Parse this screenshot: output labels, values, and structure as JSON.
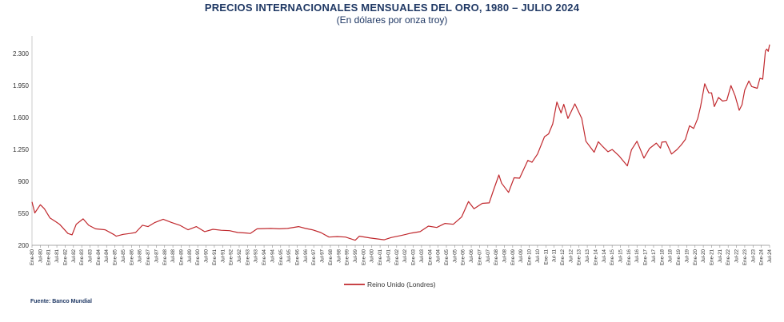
{
  "chart_data": {
    "type": "line",
    "title": "PRECIOS INTERNACIONALES MENSUALES DEL ORO, 1980 – JULIO 2024",
    "subtitle": "(En dólares por onza troy)",
    "xlabel": "",
    "ylabel": "",
    "ylim": [
      200,
      2450
    ],
    "yticks": [
      200,
      550,
      900,
      1250,
      1600,
      1950,
      2300
    ],
    "ytick_labels": [
      "200",
      "550",
      "900",
      "1.250",
      "1.600",
      "1.950",
      "2.300"
    ],
    "x_ticks": [
      "Ene-80",
      "Jul-80",
      "Ene-81",
      "Jul-81",
      "Ene-82",
      "Jul-82",
      "Ene-83",
      "Jul-83",
      "Ene-84",
      "Jul-84",
      "Ene-85",
      "Jul-85",
      "Ene-86",
      "Jul-86",
      "Ene-87",
      "Jul-87",
      "Ene-88",
      "Jul-88",
      "Ene-89",
      "Jul-89",
      "Ene-90",
      "Jul-90",
      "Ene-91",
      "Jul-91",
      "Ene-92",
      "Jul-92",
      "Ene-93",
      "Jul-93",
      "Ene-94",
      "Jul-94",
      "Ene-95",
      "Jul-95",
      "Ene-96",
      "Jul-96",
      "Ene-97",
      "Jul-97",
      "Ene-98",
      "Jul-98",
      "Ene-99",
      "Jul-99",
      "Ene-00",
      "Jul-00",
      "Ene-01",
      "Jul-01",
      "Ene-02",
      "Jul-02",
      "Ene-03",
      "Jul-03",
      "Ene-04",
      "Jul-04",
      "Ene-05",
      "Jul-05",
      "Ene-06",
      "Jul-06",
      "Ene-07",
      "Jul-07",
      "Ene-08",
      "Jul-08",
      "Ene-09",
      "Jul-09",
      "Ene-10",
      "Jul-10",
      "Ene-11",
      "Jul-11",
      "Ene-12",
      "Jul-12",
      "Ene-13",
      "Jul-13",
      "Ene-14",
      "Jul-14",
      "Ene-15",
      "Jul-15",
      "Ene-16",
      "Jul-16",
      "Ene-17",
      "Jul-17",
      "Ene-18",
      "Jul-18",
      "Ene-19",
      "Jul-19",
      "Ene-20",
      "Jul-20",
      "Ene-21",
      "Jul-21",
      "Ene-22",
      "Jul-22",
      "Ene-23",
      "Jul-23",
      "Ene-24",
      "Jul-24"
    ],
    "series": [
      {
        "name": "Reino Unido (Londres)",
        "color": "#c0282d",
        "points": [
          [
            "1980-01",
            675
          ],
          [
            "1980-03",
            555
          ],
          [
            "1980-07",
            645
          ],
          [
            "1980-10",
            600
          ],
          [
            "1981-02",
            500
          ],
          [
            "1981-06",
            460
          ],
          [
            "1981-09",
            430
          ],
          [
            "1982-03",
            330
          ],
          [
            "1982-06",
            315
          ],
          [
            "1982-09",
            430
          ],
          [
            "1983-02",
            490
          ],
          [
            "1983-06",
            420
          ],
          [
            "1983-11",
            380
          ],
          [
            "1984-06",
            370
          ],
          [
            "1984-12",
            320
          ],
          [
            "1985-02",
            300
          ],
          [
            "1985-07",
            320
          ],
          [
            "1985-12",
            330
          ],
          [
            "1986-04",
            340
          ],
          [
            "1986-09",
            420
          ],
          [
            "1987-01",
            405
          ],
          [
            "1987-06",
            450
          ],
          [
            "1987-12",
            485
          ],
          [
            "1988-06",
            450
          ],
          [
            "1988-12",
            420
          ],
          [
            "1989-06",
            370
          ],
          [
            "1989-12",
            405
          ],
          [
            "1990-06",
            350
          ],
          [
            "1990-12",
            375
          ],
          [
            "1991-06",
            365
          ],
          [
            "1991-12",
            360
          ],
          [
            "1992-06",
            340
          ],
          [
            "1992-12",
            335
          ],
          [
            "1993-03",
            330
          ],
          [
            "1993-08",
            380
          ],
          [
            "1994-06",
            385
          ],
          [
            "1994-12",
            380
          ],
          [
            "1995-06",
            385
          ],
          [
            "1996-02",
            405
          ],
          [
            "1996-07",
            385
          ],
          [
            "1996-12",
            370
          ],
          [
            "1997-06",
            340
          ],
          [
            "1997-12",
            290
          ],
          [
            "1998-06",
            295
          ],
          [
            "1998-12",
            290
          ],
          [
            "1999-07",
            255
          ],
          [
            "1999-10",
            300
          ],
          [
            "2000-06",
            280
          ],
          [
            "2001-04",
            260
          ],
          [
            "2001-09",
            285
          ],
          [
            "2002-05",
            310
          ],
          [
            "2002-12",
            335
          ],
          [
            "2003-06",
            350
          ],
          [
            "2003-12",
            410
          ],
          [
            "2004-06",
            395
          ],
          [
            "2004-12",
            440
          ],
          [
            "2005-06",
            430
          ],
          [
            "2005-12",
            510
          ],
          [
            "2006-05",
            680
          ],
          [
            "2006-09",
            600
          ],
          [
            "2007-03",
            660
          ],
          [
            "2007-08",
            665
          ],
          [
            "2007-11",
            800
          ],
          [
            "2008-03",
            970
          ],
          [
            "2008-05",
            880
          ],
          [
            "2008-10",
            780
          ],
          [
            "2009-02",
            940
          ],
          [
            "2009-06",
            935
          ],
          [
            "2009-12",
            1130
          ],
          [
            "2010-03",
            1110
          ],
          [
            "2010-07",
            1200
          ],
          [
            "2010-12",
            1390
          ],
          [
            "2011-03",
            1420
          ],
          [
            "2011-06",
            1530
          ],
          [
            "2011-09",
            1770
          ],
          [
            "2011-12",
            1650
          ],
          [
            "2012-02",
            1745
          ],
          [
            "2012-05",
            1590
          ],
          [
            "2012-10",
            1750
          ],
          [
            "2013-03",
            1590
          ],
          [
            "2013-06",
            1340
          ],
          [
            "2013-12",
            1220
          ],
          [
            "2014-03",
            1335
          ],
          [
            "2014-06",
            1285
          ],
          [
            "2014-10",
            1225
          ],
          [
            "2015-01",
            1250
          ],
          [
            "2015-06",
            1180
          ],
          [
            "2015-12",
            1070
          ],
          [
            "2016-03",
            1245
          ],
          [
            "2016-07",
            1340
          ],
          [
            "2016-12",
            1155
          ],
          [
            "2017-04",
            1260
          ],
          [
            "2017-09",
            1320
          ],
          [
            "2017-12",
            1265
          ],
          [
            "2018-01",
            1330
          ],
          [
            "2018-04",
            1335
          ],
          [
            "2018-08",
            1200
          ],
          [
            "2018-12",
            1250
          ],
          [
            "2019-03",
            1300
          ],
          [
            "2019-06",
            1360
          ],
          [
            "2019-09",
            1510
          ],
          [
            "2019-12",
            1480
          ],
          [
            "2020-03",
            1590
          ],
          [
            "2020-05",
            1720
          ],
          [
            "2020-08",
            1970
          ],
          [
            "2020-11",
            1870
          ],
          [
            "2021-01",
            1870
          ],
          [
            "2021-03",
            1720
          ],
          [
            "2021-06",
            1820
          ],
          [
            "2021-09",
            1780
          ],
          [
            "2021-12",
            1790
          ],
          [
            "2022-03",
            1950
          ],
          [
            "2022-06",
            1840
          ],
          [
            "2022-09",
            1680
          ],
          [
            "2022-11",
            1740
          ],
          [
            "2023-01",
            1900
          ],
          [
            "2023-04",
            2000
          ],
          [
            "2023-06",
            1940
          ],
          [
            "2023-10",
            1920
          ],
          [
            "2023-12",
            2030
          ],
          [
            "2024-02",
            2020
          ],
          [
            "2024-04",
            2330
          ],
          [
            "2024-05",
            2350
          ],
          [
            "2024-06",
            2325
          ],
          [
            "2024-07",
            2400
          ]
        ]
      }
    ],
    "legend": "bottom-center",
    "grid": false
  },
  "source": "Fuente: Banco Mundial"
}
